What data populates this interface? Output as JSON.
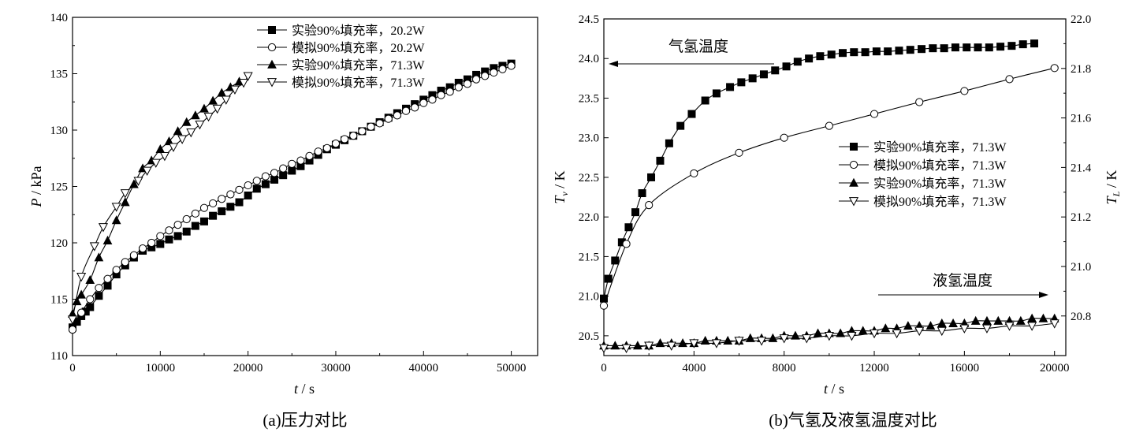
{
  "chart_data": [
    {
      "type": "line",
      "caption": "(a)压力对比",
      "xlabel": "t",
      "xunit": " / s",
      "ylabel": "P",
      "yunit": " / kPa",
      "xlim": [
        0,
        53000
      ],
      "ylim": [
        110,
        140
      ],
      "xticks": [
        0,
        10000,
        20000,
        30000,
        40000,
        50000
      ],
      "yticks": [
        110,
        115,
        120,
        125,
        130,
        135,
        140
      ],
      "legend_position": "top-right",
      "series": [
        {
          "name": "实验90%填充率，20.2W",
          "marker": "square-filled",
          "x": [
            0,
            500,
            1000,
            1500,
            2000,
            3000,
            4000,
            5000,
            6000,
            7000,
            8000,
            9000,
            10000,
            11000,
            12000,
            13000,
            14000,
            15000,
            16000,
            17000,
            18000,
            19000,
            20000,
            21000,
            22000,
            23000,
            24000,
            25000,
            26000,
            27000,
            28000,
            29000,
            30000,
            31000,
            32000,
            33000,
            34000,
            35000,
            36000,
            37000,
            38000,
            39000,
            40000,
            41000,
            42000,
            43000,
            44000,
            45000,
            46000,
            47000,
            48000,
            49000,
            50000
          ],
          "y": [
            112.5,
            113.0,
            113.5,
            113.9,
            114.3,
            115.3,
            116.2,
            117.2,
            118.0,
            118.7,
            119.3,
            119.6,
            119.9,
            120.3,
            120.6,
            121.0,
            121.5,
            121.9,
            122.4,
            122.8,
            123.2,
            123.6,
            124.2,
            124.8,
            125.2,
            125.6,
            126.0,
            126.4,
            126.8,
            127.3,
            127.8,
            128.3,
            128.7,
            129.1,
            129.5,
            129.9,
            130.3,
            130.7,
            131.1,
            131.5,
            131.9,
            132.3,
            132.7,
            133.1,
            133.5,
            133.8,
            134.2,
            134.5,
            134.9,
            135.2,
            135.5,
            135.7,
            135.9
          ]
        },
        {
          "name": "模拟90%填充率，20.2W",
          "marker": "circle-open",
          "x": [
            0,
            1000,
            2000,
            3000,
            4000,
            5000,
            6000,
            7000,
            8000,
            9000,
            10000,
            11000,
            12000,
            13000,
            14000,
            15000,
            16000,
            17000,
            18000,
            19000,
            20000,
            21000,
            22000,
            23000,
            24000,
            25000,
            26000,
            27000,
            28000,
            29000,
            30000,
            31000,
            32000,
            33000,
            34000,
            35000,
            36000,
            37000,
            38000,
            39000,
            40000,
            41000,
            42000,
            43000,
            44000,
            45000,
            46000,
            47000,
            48000,
            49000,
            50000
          ],
          "y": [
            112.3,
            113.8,
            115.0,
            116.0,
            116.8,
            117.6,
            118.3,
            118.9,
            119.5,
            120.0,
            120.6,
            121.1,
            121.6,
            122.1,
            122.6,
            123.1,
            123.5,
            123.9,
            124.3,
            124.7,
            125.1,
            125.5,
            125.9,
            126.2,
            126.6,
            127.0,
            127.3,
            127.7,
            128.1,
            128.4,
            128.8,
            129.2,
            129.5,
            129.9,
            130.3,
            130.6,
            131.0,
            131.3,
            131.7,
            132.0,
            132.4,
            132.7,
            133.1,
            133.4,
            133.8,
            134.1,
            134.5,
            134.8,
            135.1,
            135.4,
            135.7
          ]
        },
        {
          "name": "实验90%填充率，71.3W",
          "marker": "triangle-up-filled",
          "x": [
            0,
            500,
            1000,
            2000,
            3000,
            4000,
            5000,
            6000,
            7000,
            8000,
            9000,
            10000,
            11000,
            12000,
            13000,
            14000,
            15000,
            16000,
            17000,
            18000,
            19000
          ],
          "y": [
            113.7,
            114.8,
            115.4,
            116.7,
            118.7,
            120.2,
            122.0,
            123.6,
            125.2,
            126.6,
            127.3,
            128.3,
            129.0,
            129.9,
            130.7,
            131.3,
            131.9,
            132.6,
            133.3,
            133.8,
            134.3
          ]
        },
        {
          "name": "模拟90%填充率，71.3W",
          "marker": "triangle-down-open",
          "x": [
            0,
            1000,
            2500,
            3500,
            5000,
            6000,
            7500,
            8500,
            9500,
            10500,
            11500,
            12500,
            13500,
            14500,
            15500,
            16500,
            17500,
            18500,
            19500,
            20000
          ],
          "y": [
            113.2,
            117.0,
            119.7,
            121.4,
            123.2,
            124.4,
            125.5,
            126.4,
            127.1,
            127.7,
            128.5,
            129.2,
            129.8,
            130.5,
            131.2,
            131.9,
            132.7,
            133.6,
            134.2,
            134.8
          ]
        }
      ]
    },
    {
      "type": "line",
      "caption": "(b)气氢及液氢温度对比",
      "xlabel": "t",
      "xunit": " / s",
      "ylabel_left": "T",
      "ylabel_left_sub": "v",
      "yunit_left": " / K",
      "ylabel_right": "T",
      "ylabel_right_sub": "L",
      "yunit_right": " / K",
      "xlim": [
        0,
        20500
      ],
      "ylim_left": [
        20.25,
        24.5
      ],
      "ylim_right": [
        20.64,
        22.0
      ],
      "xticks": [
        0,
        4000,
        8000,
        12000,
        16000,
        20000
      ],
      "yticks_left": [
        20.5,
        21.0,
        21.5,
        22.0,
        22.5,
        23.0,
        23.5,
        24.0,
        24.5
      ],
      "yticks_right": [
        20.8,
        21.0,
        21.2,
        21.4,
        21.6,
        21.8,
        22.0
      ],
      "legend_position": "center-right",
      "annotations": [
        {
          "text": "气氢温度",
          "arrow": "left"
        },
        {
          "text": "液氢温度",
          "arrow": "right"
        }
      ],
      "series": [
        {
          "name": "实验90%填充率，71.3W",
          "axis": "left",
          "marker": "square-filled",
          "x": [
            0,
            200,
            500,
            800,
            1100,
            1400,
            1700,
            2100,
            2500,
            2900,
            3400,
            3900,
            4500,
            5000,
            5600,
            6100,
            6600,
            7100,
            7600,
            8100,
            8600,
            9100,
            9600,
            10100,
            10600,
            11100,
            11600,
            12100,
            12600,
            13100,
            13600,
            14100,
            14600,
            15100,
            15600,
            16100,
            16600,
            17100,
            17600,
            18100,
            18600,
            19100
          ],
          "y": [
            20.97,
            21.22,
            21.45,
            21.68,
            21.87,
            22.06,
            22.3,
            22.5,
            22.71,
            22.93,
            23.15,
            23.3,
            23.47,
            23.56,
            23.64,
            23.7,
            23.75,
            23.8,
            23.85,
            23.9,
            23.96,
            24.0,
            24.03,
            24.05,
            24.07,
            24.08,
            24.08,
            24.09,
            24.09,
            24.1,
            24.11,
            24.12,
            24.13,
            24.13,
            24.14,
            24.14,
            24.14,
            24.14,
            24.15,
            24.16,
            24.18,
            24.19
          ]
        },
        {
          "name": "模拟90%填充率，71.3W",
          "axis": "left",
          "marker": "circle-open",
          "x": [
            0,
            1000,
            2000,
            4000,
            6000,
            8000,
            10000,
            12000,
            14000,
            16000,
            18000,
            20000
          ],
          "y": [
            20.88,
            21.66,
            22.15,
            22.55,
            22.81,
            23.0,
            23.15,
            23.3,
            23.45,
            23.59,
            23.74,
            23.88
          ]
        },
        {
          "name": "实验90%填充率，71.3W",
          "axis": "right",
          "marker": "triangle-up-filled",
          "x": [
            0,
            500,
            1000,
            1500,
            2000,
            2500,
            3000,
            3500,
            4000,
            4500,
            5000,
            5500,
            6000,
            6500,
            7000,
            7500,
            8000,
            8500,
            9000,
            9500,
            10000,
            10500,
            11000,
            11500,
            12000,
            12500,
            13000,
            13500,
            14000,
            14500,
            15000,
            15500,
            16000,
            16500,
            17000,
            17500,
            18000,
            18500,
            19000,
            19500,
            20000
          ],
          "y": [
            20.68,
            20.68,
            20.68,
            20.68,
            20.68,
            20.69,
            20.69,
            20.69,
            20.69,
            20.7,
            20.7,
            20.7,
            20.7,
            20.71,
            20.71,
            20.71,
            20.72,
            20.72,
            20.72,
            20.73,
            20.73,
            20.73,
            20.74,
            20.74,
            20.74,
            20.75,
            20.75,
            20.76,
            20.76,
            20.76,
            20.77,
            20.77,
            20.77,
            20.78,
            20.78,
            20.78,
            20.78,
            20.78,
            20.79,
            20.79,
            20.79
          ]
        },
        {
          "name": "模拟90%填充率，71.3W",
          "axis": "right",
          "marker": "triangle-down-open",
          "x": [
            0,
            1000,
            2000,
            3000,
            4000,
            5000,
            6000,
            7000,
            8000,
            9000,
            10000,
            11000,
            12000,
            13000,
            14000,
            15000,
            16000,
            17000,
            18000,
            19000,
            20000
          ],
          "y": [
            20.67,
            20.67,
            20.68,
            20.68,
            20.69,
            20.69,
            20.7,
            20.7,
            20.71,
            20.71,
            20.72,
            20.72,
            20.73,
            20.73,
            20.74,
            20.74,
            20.75,
            20.75,
            20.76,
            20.76,
            20.77
          ]
        }
      ]
    }
  ]
}
